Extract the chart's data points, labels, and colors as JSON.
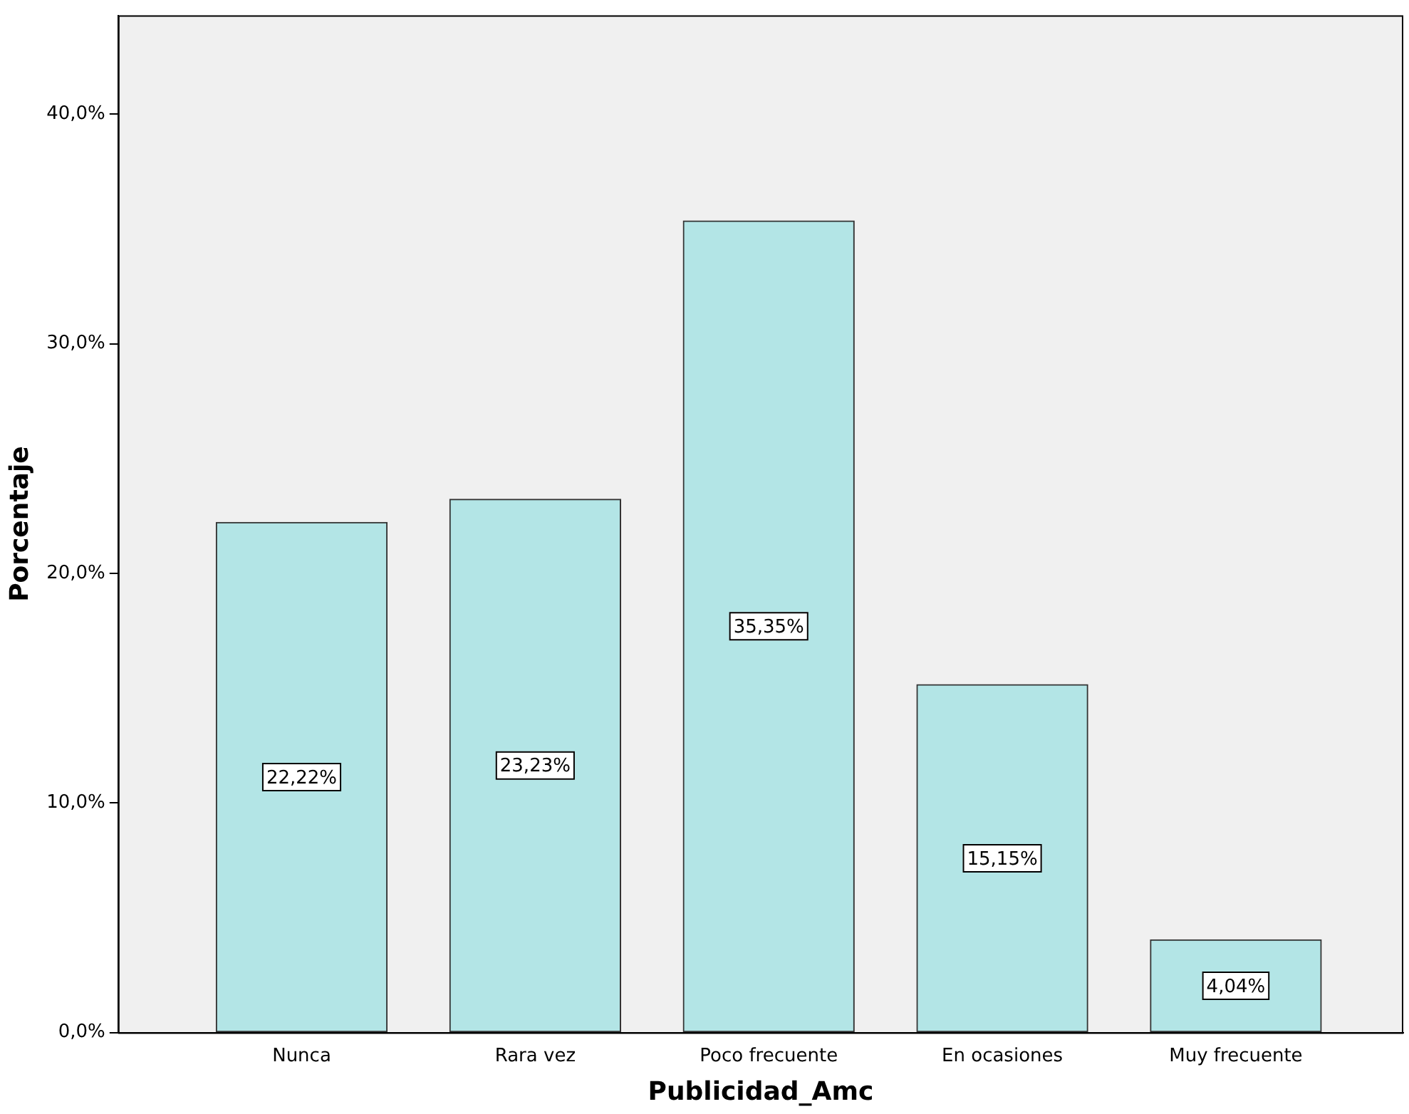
{
  "chart_data": {
    "type": "bar",
    "xlabel": "Publicidad_Amc",
    "ylabel": "Porcentaje",
    "categories": [
      "Nunca",
      "Rara vez",
      "Poco frecuente",
      "En ocasiones",
      "Muy frecuente"
    ],
    "values": [
      22.22,
      23.23,
      35.35,
      15.15,
      4.04
    ],
    "value_labels": [
      "22,22%",
      "23,23%",
      "35,35%",
      "15,15%",
      "4,04%"
    ],
    "color": "#b3e5e6",
    "ylim": [
      0,
      44.3
    ],
    "yticks": [
      {
        "value": 0,
        "label": "0,0%"
      },
      {
        "value": 10,
        "label": "10,0%"
      },
      {
        "value": 20,
        "label": "20,0%"
      },
      {
        "value": 30,
        "label": "30,0%"
      },
      {
        "value": 40,
        "label": "40,0%"
      }
    ],
    "grid": false,
    "legend": false
  }
}
